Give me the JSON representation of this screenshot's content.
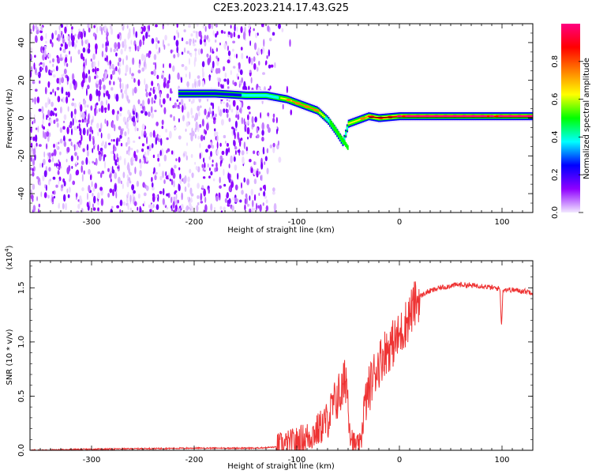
{
  "title": "C2E3.2023.214.17.43.G25",
  "chart_data": [
    {
      "type": "heatmap",
      "xlabel": "Height of straight line (km)",
      "ylabel": "Frequency (Hz)",
      "xlim": [
        -360,
        130
      ],
      "ylim": [
        -50,
        50
      ],
      "x_ticks": [
        -300,
        -200,
        -100,
        0,
        100
      ],
      "y_ticks": [
        -40,
        -20,
        0,
        20,
        40
      ],
      "colorbar": {
        "label": "Normalized spectral amplitude",
        "range": [
          0,
          1
        ],
        "ticks": [
          "0.0",
          "0.2",
          "0.4",
          "0.6",
          "0.8"
        ],
        "colors": [
          "#f2e8ff",
          "#8f00ff",
          "#0000ff",
          "#00ffff",
          "#00ff00",
          "#ffff00",
          "#ff7f00",
          "#ff0000",
          "#ff0080"
        ]
      },
      "ridge": {
        "x": [
          -215,
          -180,
          -150,
          -130,
          -110,
          -95,
          -80,
          -70,
          -62,
          -55,
          -50,
          -40,
          -30,
          -20,
          0,
          30,
          60,
          90,
          130
        ],
        "y": [
          13,
          13,
          12,
          12,
          10,
          7,
          4,
          -1,
          -7,
          -13,
          -3,
          -1,
          1,
          0,
          1,
          1,
          1,
          1,
          1
        ],
        "amplitude": [
          0.35,
          0.3,
          0.4,
          0.45,
          0.6,
          0.7,
          0.65,
          0.5,
          0.45,
          0.5,
          0.55,
          0.6,
          0.75,
          0.8,
          0.85,
          0.9,
          0.9,
          0.85,
          0.9
        ]
      },
      "noise_region": [
        -360,
        -115
      ]
    },
    {
      "type": "line",
      "xlabel": "Height of straight line (km)",
      "ylabel": "SNR (10 * v/v)",
      "multiplier": "(x10^4)",
      "xlim": [
        -360,
        130
      ],
      "ylim": [
        0,
        1.75
      ],
      "x_ticks": [
        -300,
        -200,
        -100,
        0,
        100
      ],
      "y_ticks": [
        "0.0",
        "0.5",
        "1.0",
        "1.5"
      ],
      "color": "#ee3333",
      "x": [
        -360,
        -300,
        -200,
        -140,
        -120,
        -110,
        -100,
        -90,
        -80,
        -70,
        -65,
        -60,
        -55,
        -52,
        -50,
        -48,
        -45,
        -40,
        -38,
        -35,
        -30,
        -25,
        -20,
        -15,
        -10,
        -5,
        0,
        5,
        10,
        15,
        20,
        25,
        30,
        40,
        50,
        60,
        70,
        80,
        90,
        100,
        110,
        120,
        130
      ],
      "y": [
        0.0,
        0.01,
        0.02,
        0.02,
        0.03,
        0.05,
        0.08,
        0.12,
        0.18,
        0.28,
        0.4,
        0.5,
        0.55,
        0.7,
        0.45,
        0.2,
        0.05,
        0.02,
        0.03,
        0.35,
        0.55,
        0.7,
        0.8,
        0.9,
        0.95,
        1.0,
        1.05,
        1.15,
        1.25,
        1.35,
        1.42,
        1.45,
        1.47,
        1.5,
        1.52,
        1.53,
        1.52,
        1.52,
        1.5,
        1.49,
        1.48,
        1.47,
        1.46
      ]
    }
  ]
}
